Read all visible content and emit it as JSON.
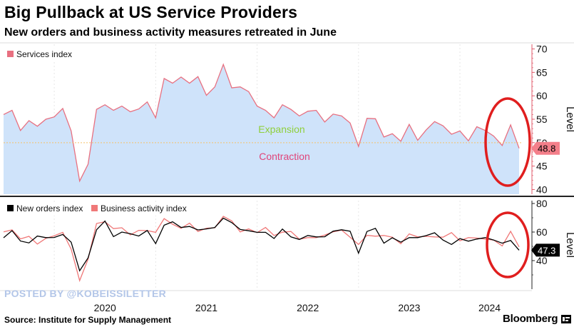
{
  "header": {
    "title": "Big Pullback at US Service Providers",
    "subtitle": "New orders and business activity measures retreated in June"
  },
  "footer": {
    "source": "Source: Institute for Supply Management",
    "brand": "Bloomberg"
  },
  "watermark": "POSTED BY @KOBEISSILETTER",
  "colors": {
    "area_fill": "#cfe3fa",
    "services_line": "#e87080",
    "new_orders_line": "#000000",
    "business_activity_line": "#f07878",
    "expansion_text": "#8fcf3c",
    "contraction_text": "#e0457a",
    "threshold": "#f5c26b",
    "annotation_circle": "#e01e1e",
    "axis_accent": "#e05a6a"
  },
  "chart_data": [
    {
      "type": "area",
      "name": "services-panel",
      "legend": [
        "Services index"
      ],
      "ylabel": "Level",
      "ylim": [
        39,
        71
      ],
      "yticks": [
        40,
        45,
        50,
        55,
        60,
        65,
        70
      ],
      "threshold": 50,
      "region_labels": {
        "above": "Expansion",
        "below": "Contraction"
      },
      "last_value_label": "48.8",
      "x_start": "2019-07",
      "x_labels": [
        "2020",
        "2021",
        "2022",
        "2023",
        "2024"
      ],
      "series": [
        {
          "name": "Services index",
          "values": [
            56.0,
            56.9,
            52.6,
            54.7,
            53.5,
            55.0,
            55.5,
            57.3,
            52.5,
            41.8,
            45.4,
            57.1,
            58.1,
            56.9,
            57.8,
            56.6,
            57.2,
            58.7,
            55.3,
            63.7,
            62.7,
            64.0,
            62.7,
            64.1,
            60.1,
            61.9,
            66.7,
            61.7,
            61.9,
            60.9,
            57.8,
            56.9,
            55.3,
            58.1,
            57.1,
            55.7,
            56.7,
            56.9,
            54.4,
            56.1,
            55.7,
            54.2,
            49.2,
            55.2,
            55.1,
            51.2,
            51.9,
            50.3,
            53.9,
            50.5,
            52.7,
            54.5,
            53.6,
            51.8,
            52.5,
            50.4,
            53.4,
            52.6,
            51.4,
            49.4,
            53.8,
            48.8
          ]
        }
      ],
      "annotation": "circle around 2024 values"
    },
    {
      "type": "line",
      "name": "subindex-panel",
      "legend": [
        "New orders index",
        "Business activity index"
      ],
      "ylabel": "Level",
      "ylim": [
        20,
        82
      ],
      "yticks": [
        40,
        60,
        80
      ],
      "last_value_label": "47.3",
      "x_start": "2019-07",
      "x_labels": [
        "2020",
        "2021",
        "2022",
        "2023",
        "2024"
      ],
      "series": [
        {
          "name": "New orders index",
          "values": [
            56.0,
            61.0,
            53.7,
            52.4,
            57.2,
            56.1,
            56.2,
            58.3,
            52.9,
            32.9,
            41.9,
            61.6,
            67.7,
            56.8,
            60.0,
            58.8,
            57.2,
            61.1,
            51.9,
            64.8,
            67.2,
            63.2,
            63.9,
            61.5,
            62.2,
            63.2,
            69.7,
            66.6,
            61.8,
            60.9,
            59.8,
            59.8,
            55.5,
            62.1,
            56.6,
            54.8,
            57.6,
            56.6,
            56.7,
            60.6,
            61.6,
            60.6,
            45.2,
            60.4,
            62.6,
            52.2,
            56.0,
            52.9,
            56.1,
            56.1,
            57.5,
            59.5,
            54.4,
            51.3,
            55.4,
            53.6,
            55.1,
            56.1,
            54.4,
            52.2,
            54.1,
            47.3
          ]
        },
        {
          "name": "Business activity index",
          "values": [
            60.1,
            61.5,
            55.2,
            57.0,
            51.6,
            55.6,
            57.4,
            59.8,
            48.0,
            26.0,
            41.0,
            66.0,
            67.2,
            62.4,
            63.0,
            58.0,
            61.2,
            61.0,
            59.8,
            69.4,
            65.5,
            62.6,
            66.2,
            60.4,
            62.7,
            63.0,
            71.0,
            67.8,
            60.1,
            62.2,
            59.6,
            63.2,
            57.6,
            59.9,
            60.4,
            55.0,
            56.1,
            56.1,
            57.9,
            60.1,
            61.4,
            56.4,
            51.3,
            57.7,
            57.1,
            57.6,
            56.4,
            51.8,
            58.7,
            56.6,
            57.0,
            56.6,
            56.4,
            59.6,
            53.9,
            56.1,
            55.8,
            55.0,
            54.4,
            50.3,
            60.5,
            49.6
          ]
        }
      ],
      "annotation": "circle around 2024 values"
    }
  ]
}
